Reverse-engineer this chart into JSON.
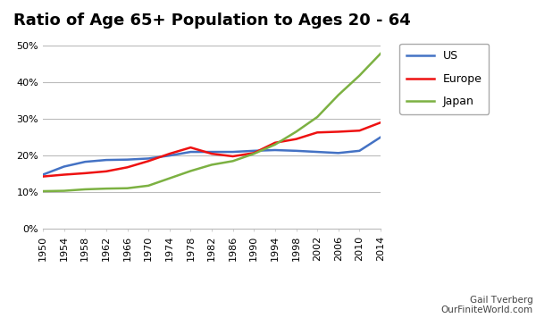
{
  "title": "Ratio of Age 65+ Population to Ages 20 - 64",
  "watermark_line1": "Gail Tverberg",
  "watermark_line2": "OurFiniteWorld.com",
  "years": [
    1950,
    1954,
    1958,
    1962,
    1966,
    1970,
    1974,
    1978,
    1982,
    1986,
    1990,
    1994,
    1998,
    2002,
    2006,
    2010,
    2014
  ],
  "US": [
    0.148,
    0.17,
    0.183,
    0.188,
    0.189,
    0.192,
    0.2,
    0.21,
    0.21,
    0.21,
    0.213,
    0.215,
    0.213,
    0.21,
    0.207,
    0.213,
    0.25
  ],
  "Europe": [
    0.143,
    0.148,
    0.152,
    0.157,
    0.168,
    0.185,
    0.205,
    0.222,
    0.205,
    0.198,
    0.207,
    0.235,
    0.245,
    0.263,
    0.265,
    0.268,
    0.29
  ],
  "Japan": [
    0.103,
    0.104,
    0.108,
    0.11,
    0.111,
    0.118,
    0.138,
    0.158,
    0.175,
    0.185,
    0.205,
    0.23,
    0.265,
    0.305,
    0.365,
    0.418,
    0.478
  ],
  "US_color": "#4472C4",
  "Europe_color": "#EE1111",
  "Japan_color": "#7CB142",
  "ylim": [
    0,
    0.52
  ],
  "yticks": [
    0.0,
    0.1,
    0.2,
    0.3,
    0.4,
    0.5
  ],
  "bg_color": "#FFFFFF",
  "grid_color": "#BBBBBB",
  "line_width": 1.8,
  "title_fontsize": 13,
  "tick_fontsize": 8,
  "legend_fontsize": 9
}
